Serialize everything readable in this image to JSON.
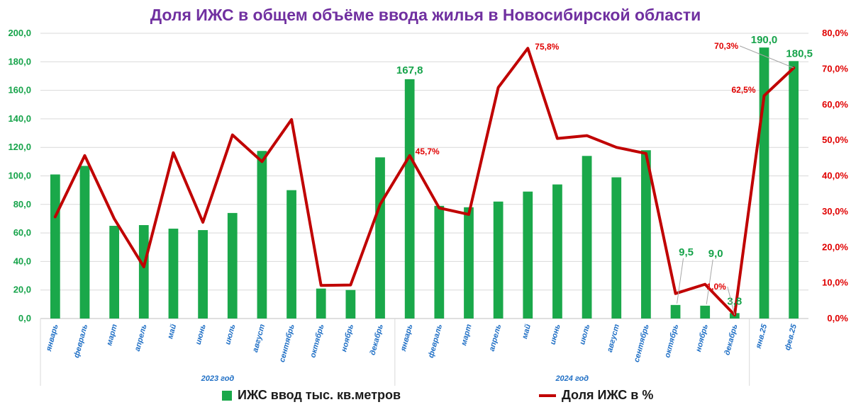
{
  "title": "Доля ИЖС  в общем объёме ввода жилья в Новосибирской области",
  "chart_data": {
    "type": "bar+line",
    "categories": [
      "январь",
      "февраль",
      "март",
      "апрель",
      "май",
      "июнь",
      "июль",
      "август",
      "сентябрь",
      "октябрь",
      "ноябрь",
      "декабрь",
      "январь",
      "февраль",
      "март",
      "апрель",
      "май",
      "июнь",
      "июль",
      "август",
      "сентябрь",
      "октябрь",
      "ноябрь",
      "декабрь",
      "янв.25",
      "фев.25"
    ],
    "groups": [
      {
        "label": "2023 год",
        "start": 0,
        "end": 11
      },
      {
        "label": "2024 год",
        "start": 12,
        "end": 23
      }
    ],
    "series": [
      {
        "name": "ИЖС ввод тыс. кв.метров",
        "type": "bar",
        "axis": "left",
        "color": "#1aa84a",
        "values": [
          101,
          107,
          65,
          65.5,
          63,
          62,
          74,
          117.5,
          90,
          21,
          20,
          113,
          167.8,
          79,
          78,
          82,
          89,
          94,
          114,
          99,
          118,
          9.5,
          9.0,
          3.8,
          190.0,
          180.5
        ]
      },
      {
        "name": "Доля ИЖС в %",
        "type": "line",
        "axis": "right",
        "color": "#c00000",
        "values": [
          28.5,
          45.7,
          28,
          14.5,
          46.5,
          27,
          51.5,
          44,
          55.8,
          9.3,
          9.4,
          32,
          45.7,
          31,
          29.2,
          64.8,
          75.8,
          50.5,
          51.3,
          48,
          46.3,
          7,
          9.6,
          1.0,
          62.5,
          70.3
        ]
      }
    ],
    "bar_labels": [
      {
        "index": 12,
        "text": "167,8"
      },
      {
        "index": 21,
        "text": "9,5"
      },
      {
        "index": 22,
        "text": "9,0"
      },
      {
        "index": 23,
        "text": "3,8"
      },
      {
        "index": 24,
        "text": "190,0"
      },
      {
        "index": 25,
        "text": "180,5"
      }
    ],
    "line_labels": [
      {
        "index": 12,
        "text": "45,7%"
      },
      {
        "index": 16,
        "text": "75,8%"
      },
      {
        "index": 23,
        "text": "1,0%"
      },
      {
        "index": 24,
        "text": "62,5%"
      },
      {
        "index": 25,
        "text": "70,3%"
      }
    ],
    "y_left": {
      "min": 0,
      "max": 200,
      "step": 20,
      "tick_labels": [
        "0,0",
        "20,0",
        "40,0",
        "60,0",
        "80,0",
        "100,0",
        "120,0",
        "140,0",
        "160,0",
        "180,0",
        "200,0"
      ]
    },
    "y_right": {
      "min": 0,
      "max": 80,
      "step": 10,
      "tick_labels": [
        "0,0%",
        "10,0%",
        "20,0%",
        "30,0%",
        "40,0%",
        "50,0%",
        "60,0%",
        "70,0%",
        "80,0%"
      ]
    },
    "grid": true,
    "legend_position": "bottom",
    "legend": [
      {
        "label": "ИЖС ввод тыс. кв.метров",
        "color": "#1aa84a"
      },
      {
        "label": "Доля ИЖС в %",
        "color": "#c00000"
      }
    ]
  }
}
